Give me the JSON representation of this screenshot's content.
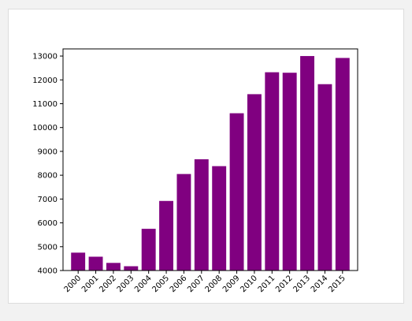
{
  "chart_data": {
    "type": "bar",
    "categories": [
      "2000",
      "2001",
      "2002",
      "2003",
      "2004",
      "2005",
      "2006",
      "2007",
      "2008",
      "2009",
      "2010",
      "2011",
      "2012",
      "2013",
      "2014",
      "2015"
    ],
    "values": [
      4750,
      4580,
      4320,
      4180,
      5750,
      6920,
      8050,
      8670,
      8380,
      10600,
      11400,
      12320,
      12300,
      13000,
      11820,
      12920
    ],
    "ylim": [
      4000,
      13300
    ],
    "yticks": [
      4000,
      5000,
      6000,
      7000,
      8000,
      9000,
      10000,
      11000,
      12000,
      13000
    ],
    "bar_color": "#800080",
    "grid": false,
    "xtick_rotation_deg": 45
  }
}
